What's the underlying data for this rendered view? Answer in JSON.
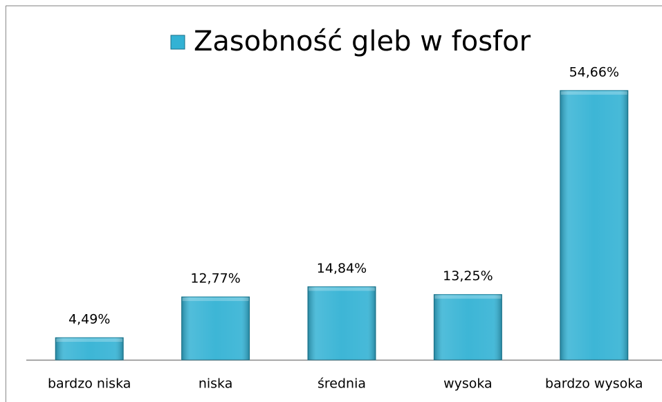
{
  "chart_data": {
    "type": "bar",
    "categories": [
      "bardzo niska",
      "niska",
      "średnia",
      "wysoka",
      "bardzo wysoka"
    ],
    "series": [
      {
        "name": "Zasobność gleb w fosfor",
        "color": "#33b2d4",
        "values": [
          4.49,
          12.77,
          14.84,
          13.25,
          54.66
        ],
        "value_labels": [
          "4,49%",
          "12,77%",
          "14,84%",
          "13,25%",
          "54,66%"
        ]
      }
    ],
    "legend": "top"
  }
}
